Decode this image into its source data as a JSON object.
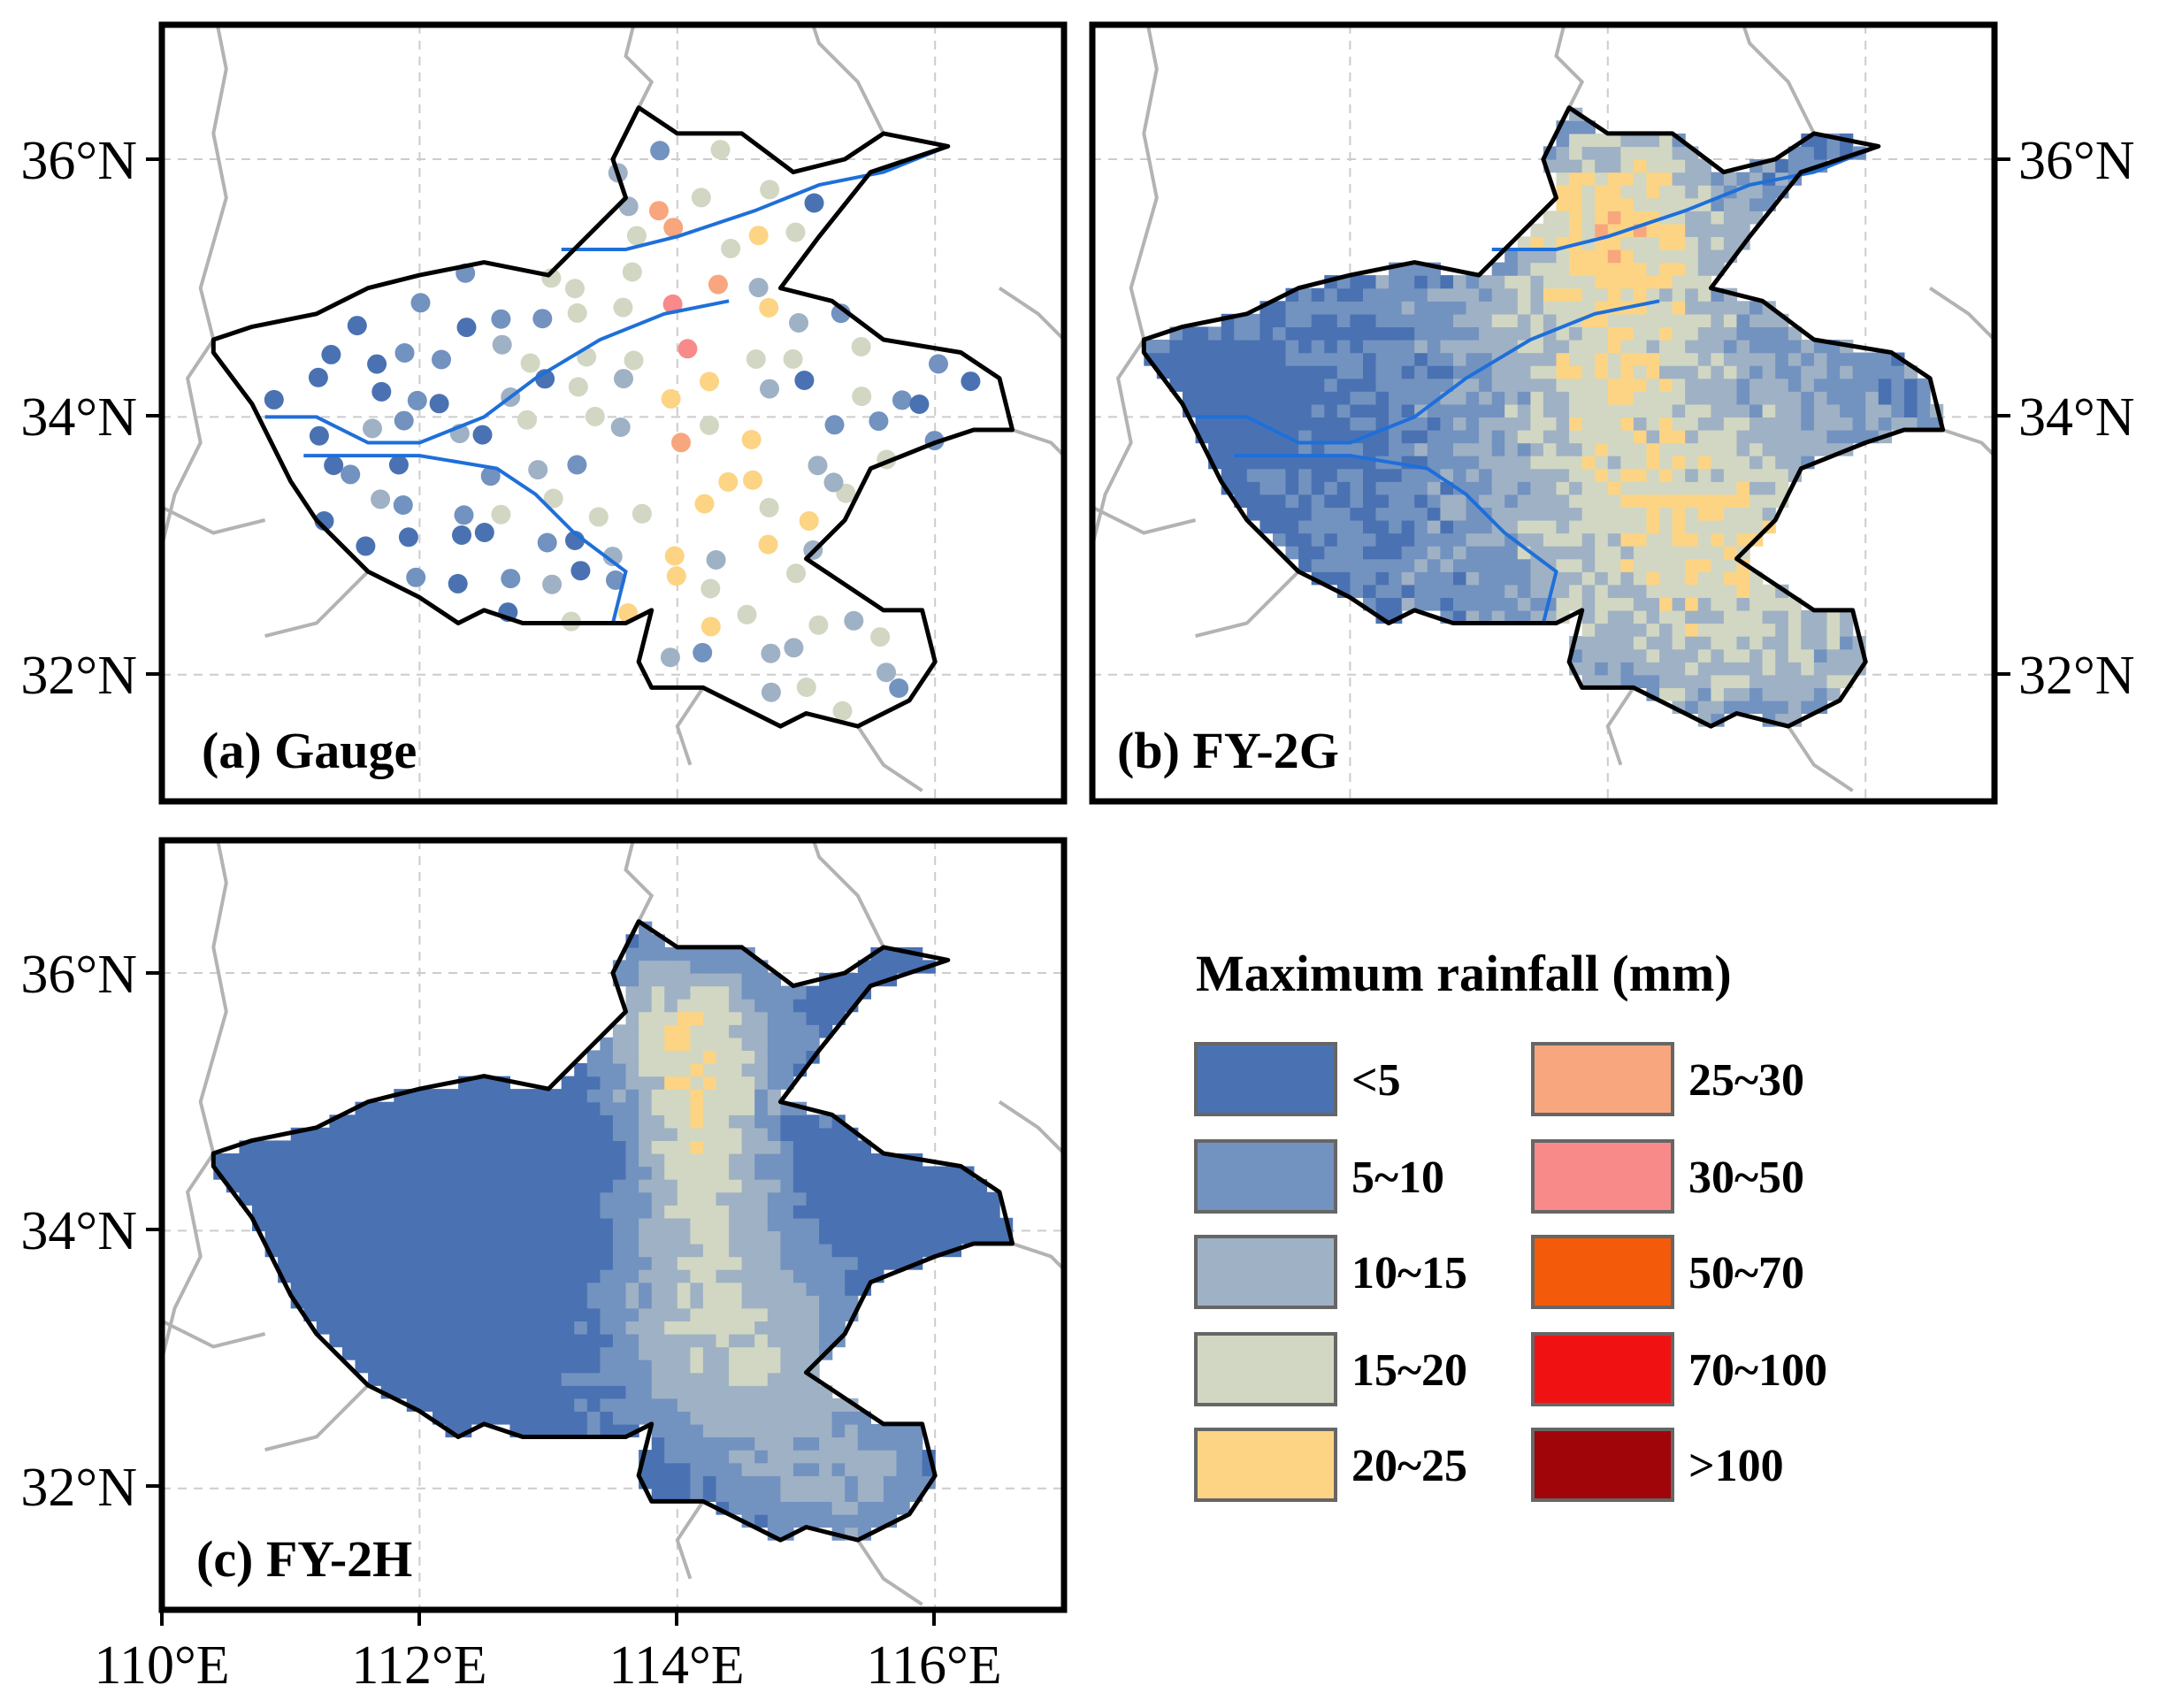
{
  "panels": [
    {
      "id": "gauge",
      "label": "(a) Gauge",
      "type": "points"
    },
    {
      "id": "fy2g",
      "label": "(b) FY-2G",
      "type": "grid"
    },
    {
      "id": "fy2h",
      "label": "(c) FY-2H",
      "type": "grid"
    }
  ],
  "axes": {
    "lat_ticks": [
      "36°N",
      "34°N",
      "32°N"
    ],
    "lon_ticks": [
      "110°E",
      "112°E",
      "114°E",
      "116°E"
    ],
    "lon_range": [
      110,
      117
    ],
    "lat_range": [
      31,
      37
    ]
  },
  "legend": {
    "title": "Maximum rainfall (mm)",
    "classes": [
      {
        "label": "<5",
        "color": "#4a72b2"
      },
      {
        "label": "5~10",
        "color": "#7292c0"
      },
      {
        "label": "10~15",
        "color": "#9fb1c4"
      },
      {
        "label": "15~20",
        "color": "#d1d7c2"
      },
      {
        "label": "20~25",
        "color": "#fcd484"
      },
      {
        "label": "25~30",
        "color": "#f8a67e"
      },
      {
        "label": "30~50",
        "color": "#f88a8a"
      },
      {
        "label": "50~70",
        "color": "#f35b0a"
      },
      {
        "label": "70~100",
        "color": "#f01212"
      },
      {
        "label": ">100",
        "color": "#a0050a"
      }
    ]
  },
  "colors": {
    "boundary": "#000000",
    "river": "#1e6fd9",
    "neighbor": "#b3b3b3",
    "grid": "#cccccc"
  }
}
